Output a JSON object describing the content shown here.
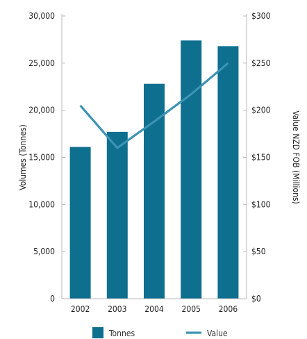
{
  "chart_data": {
    "type": "bar",
    "categories": [
      "2002",
      "2003",
      "2004",
      "2005",
      "2006"
    ],
    "series": [
      {
        "name": "Tonnes",
        "type": "bar",
        "axis": "left",
        "values": [
          16100,
          17700,
          22800,
          27400,
          26800
        ]
      },
      {
        "name": "Value",
        "type": "line",
        "axis": "right",
        "values": [
          205,
          160,
          188,
          217,
          250
        ]
      }
    ],
    "ylabel": "Volumes (Tonnes)",
    "y2label": "Value NZD FOB (Millions)",
    "ylim": [
      0,
      30000
    ],
    "y2lim": [
      0,
      300
    ],
    "yticks": [
      "0",
      "5,000",
      "10,000",
      "15,000",
      "20,000",
      "25,000",
      "30,000"
    ],
    "y2ticks": [
      "$0",
      "$50",
      "$100",
      "$150",
      "$200",
      "$250",
      "$300"
    ],
    "grid": false,
    "legend_position": "bottom",
    "colors": {
      "bar": "#0e6f8f",
      "line": "#3c93b4",
      "axis": "#b9b9b9"
    }
  }
}
